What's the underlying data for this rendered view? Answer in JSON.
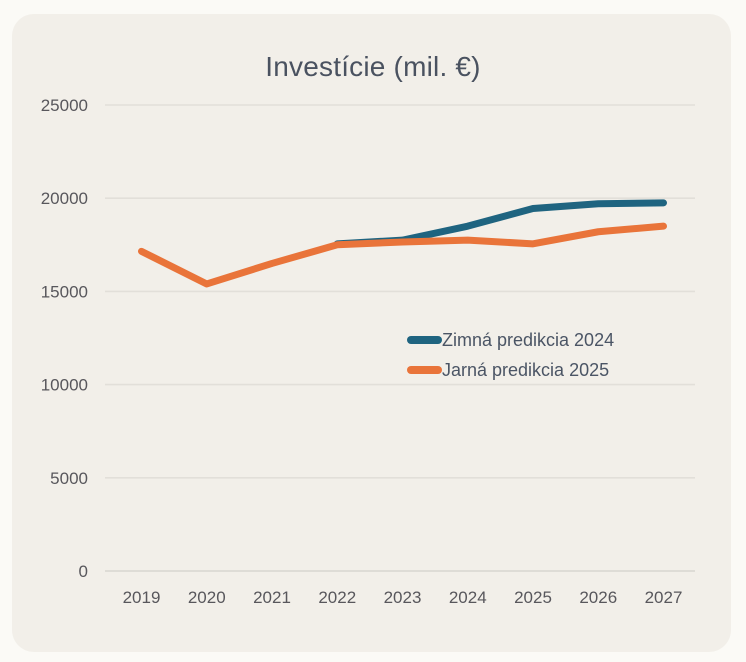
{
  "page": {
    "background_color": "#fbfaf6",
    "card_background_color": "#f2efe9",
    "gridline_color": "#e2dfd9",
    "axisline_color": "#d8d5cf",
    "tick_text_color": "#58575c",
    "title_text_color": "#4a5260",
    "legend_text_color": "#4b5565"
  },
  "chart_data": {
    "type": "line",
    "title": "Investície (mil. €)",
    "categories": [
      "2019",
      "2020",
      "2021",
      "2022",
      "2023",
      "2024",
      "2025",
      "2026",
      "2027"
    ],
    "series": [
      {
        "name": "Zimná predikcia 2024",
        "color": "#1f6480",
        "values": [
          null,
          null,
          null,
          17550,
          17750,
          18500,
          19450,
          19700,
          19750
        ]
      },
      {
        "name": "Jarná predikcia 2025",
        "color": "#e9743a",
        "values": [
          17150,
          15400,
          16500,
          17500,
          17650,
          17750,
          17550,
          18200,
          18500
        ]
      }
    ],
    "xlabel": "",
    "ylabel": "",
    "ylim": [
      0,
      25000
    ],
    "yticks": [
      0,
      5000,
      10000,
      15000,
      20000,
      25000
    ],
    "grid": true,
    "legend_position": "inside-center-right"
  }
}
